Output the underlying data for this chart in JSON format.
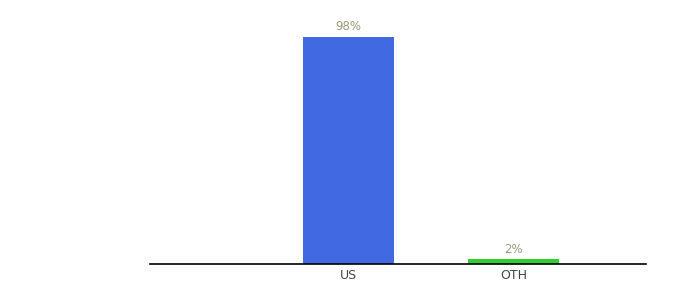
{
  "categories": [
    "US",
    "OTH"
  ],
  "values": [
    98,
    2
  ],
  "bar_colors": [
    "#4169e1",
    "#33cc33"
  ],
  "label_colors": [
    "#999977",
    "#999977"
  ],
  "labels": [
    "98%",
    "2%"
  ],
  "ylim": [
    0,
    110
  ],
  "background_color": "#ffffff",
  "label_fontsize": 8.5,
  "tick_fontsize": 9,
  "bar_width": 0.55,
  "xlim": [
    -1.2,
    1.8
  ]
}
